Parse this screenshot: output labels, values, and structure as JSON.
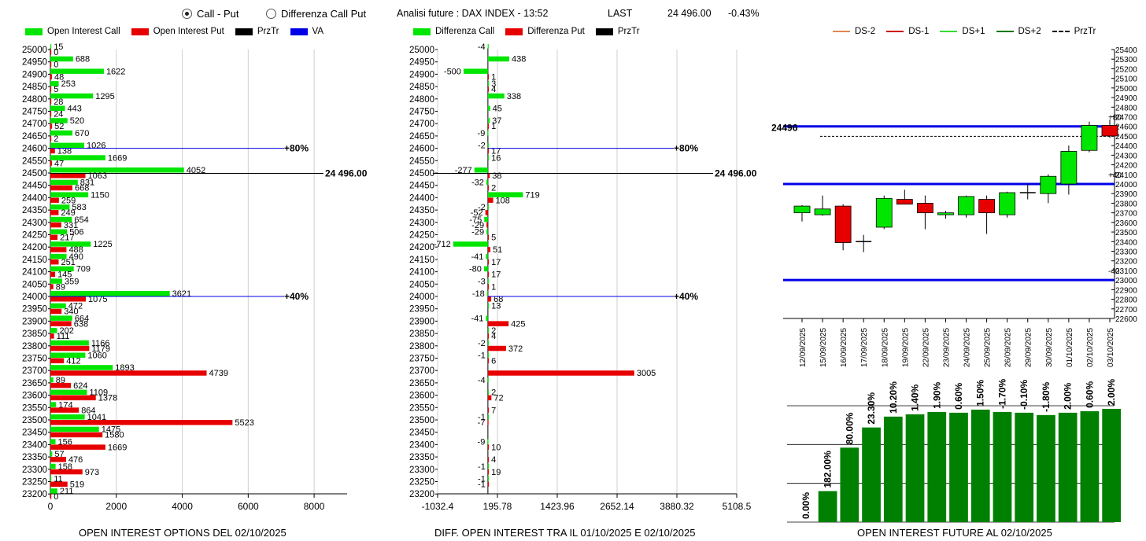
{
  "controls": {
    "radio_call_put": "Call - Put",
    "radio_diff": "Differenza Call Put",
    "selected": "call_put"
  },
  "header": {
    "title": "Analisi future : DAX INDEX - 13:52",
    "last_label": "LAST",
    "last_value": "24 496.00",
    "change": "-0.43%"
  },
  "colors": {
    "green": "#00e600",
    "red": "#e60000",
    "black": "#000000",
    "blue": "#0000e6",
    "dark_green": "#008000"
  },
  "legends": {
    "oi": [
      {
        "label": "Open Interest Call",
        "color": "#00e600",
        "icon": "swatch"
      },
      {
        "label": "Open Interest Put",
        "color": "#e60000",
        "icon": "swatch"
      },
      {
        "label": "PrzTr",
        "color": "#000000",
        "icon": "swatch"
      },
      {
        "label": "VA",
        "color": "#0000e6",
        "icon": "swatch"
      }
    ],
    "diff": [
      {
        "label": "Differenza Call",
        "color": "#00e600",
        "icon": "swatch"
      },
      {
        "label": "Differenza Put",
        "color": "#e60000",
        "icon": "swatch"
      },
      {
        "label": "PrzTr",
        "color": "#000000",
        "icon": "swatch"
      }
    ],
    "candles": [
      {
        "label": "DS-2",
        "color": "#e08850",
        "icon": "line"
      },
      {
        "label": "DS-1",
        "color": "#cc0000",
        "icon": "line"
      },
      {
        "label": "DS+1",
        "color": "#33dd33",
        "icon": "line"
      },
      {
        "label": "DS+2",
        "color": "#007700",
        "icon": "line"
      },
      {
        "label": "PrzTr",
        "color": "#000000",
        "icon": "dash"
      }
    ]
  },
  "footers": {
    "oi": "OPEN INTEREST OPTIONS DEL 02/10/2025",
    "diff": "DIFF. OPEN INTEREST TRA IL 01/10/2025 E 02/10/2025",
    "future": "OPEN INTEREST FUTURE AL 02/10/2025"
  },
  "chart_data": [
    {
      "type": "bar",
      "orientation": "horizontal",
      "title": "OPEN INTEREST OPTIONS DEL 02/10/2025",
      "categories": [
        25000,
        24950,
        24900,
        24850,
        24800,
        24750,
        24700,
        24650,
        24600,
        24550,
        24500,
        24450,
        24400,
        24350,
        24300,
        24250,
        24200,
        24150,
        24100,
        24050,
        24000,
        23950,
        23900,
        23850,
        23800,
        23750,
        23700,
        23650,
        23600,
        23550,
        23500,
        23450,
        23400,
        23350,
        23300,
        23250,
        23200
      ],
      "series": [
        {
          "name": "Open Interest Call",
          "color": "#00e600",
          "values": [
            15,
            688,
            1622,
            253,
            1295,
            443,
            520,
            670,
            1026,
            1669,
            4052,
            831,
            1150,
            583,
            654,
            506,
            1225,
            490,
            709,
            359,
            3621,
            472,
            664,
            202,
            1166,
            1060,
            1893,
            89,
            1109,
            174,
            1041,
            1475,
            156,
            57,
            158,
            11,
            211
          ]
        },
        {
          "name": "Open Interest Put",
          "color": "#e60000",
          "values": [
            0,
            0,
            48,
            5,
            28,
            24,
            52,
            2,
            138,
            47,
            1063,
            668,
            259,
            249,
            331,
            217,
            488,
            251,
            145,
            89,
            1075,
            340,
            638,
            111,
            1179,
            412,
            4739,
            624,
            1378,
            864,
            5523,
            1580,
            1669,
            476,
            973,
            519,
            0
          ]
        }
      ],
      "xlim": [
        0,
        9000
      ],
      "xticks": [
        0,
        2000,
        4000,
        6000,
        8000
      ],
      "annotations": [
        {
          "strike": 24600,
          "label": "+80%",
          "kind": "VA"
        },
        {
          "strike": 24500,
          "label": "24 496.00",
          "kind": "PrzTr"
        },
        {
          "strike": 24000,
          "label": "+40%",
          "kind": "VA"
        }
      ]
    },
    {
      "type": "bar",
      "orientation": "horizontal",
      "title": "DIFF. OPEN INTEREST TRA IL 01/10/2025 E 02/10/2025",
      "categories": [
        25000,
        24950,
        24900,
        24850,
        24800,
        24750,
        24700,
        24650,
        24600,
        24550,
        24500,
        24450,
        24400,
        24350,
        24300,
        24250,
        24200,
        24150,
        24100,
        24050,
        24000,
        23950,
        23900,
        23850,
        23800,
        23750,
        23700,
        23650,
        23600,
        23550,
        23500,
        23450,
        23400,
        23350,
        23300,
        23250,
        23200
      ],
      "series": [
        {
          "name": "Differenza Call",
          "color": "#00e600",
          "values": [
            -4,
            438,
            -500,
            3,
            338,
            45,
            37,
            -9,
            -2,
            16,
            -277,
            -32,
            719,
            -2,
            -75,
            -29,
            -712,
            -41,
            -80,
            -3,
            -18,
            13,
            -41,
            2,
            -2,
            -1,
            null,
            -4,
            2,
            null,
            -1,
            null,
            -9,
            null,
            -1,
            -1,
            null
          ]
        },
        {
          "name": "Differenza Put",
          "color": "#e60000",
          "values": [
            null,
            null,
            1,
            4,
            null,
            null,
            1,
            null,
            17,
            null,
            38,
            2,
            108,
            -52,
            -29,
            5,
            51,
            17,
            17,
            1,
            68,
            null,
            425,
            4,
            372,
            6,
            3005,
            null,
            72,
            7,
            -7,
            null,
            10,
            4,
            19,
            -1,
            null
          ]
        }
      ],
      "xlim": [
        -1032.4,
        5108.5
      ],
      "xticks": [
        -1032.4,
        195.78,
        1423.96,
        2652.14,
        3880.32,
        5108.5
      ],
      "annotations": [
        {
          "strike": 24600,
          "label": "+80%",
          "kind": "VA"
        },
        {
          "strike": 24500,
          "label": "24 496.00",
          "kind": "PrzTr"
        },
        {
          "strike": 24000,
          "label": "+40%",
          "kind": "VA"
        }
      ]
    },
    {
      "type": "candlestick",
      "title": "",
      "x": [
        "12/09/2025",
        "15/09/2025",
        "16/09/2025",
        "17/09/2025",
        "18/09/2025",
        "19/09/2025",
        "22/09/2025",
        "23/09/2025",
        "24/09/2025",
        "25/09/2025",
        "26/09/2025",
        "29/09/2025",
        "30/09/2025",
        "01/10/2025",
        "02/10/2025",
        "03/10/2025"
      ],
      "open": [
        23700,
        23680,
        23770,
        23400,
        23550,
        23840,
        23800,
        23680,
        23680,
        23840,
        23680,
        23900,
        23900,
        24000,
        24350,
        24610
      ],
      "high": [
        23780,
        23880,
        23790,
        23470,
        23880,
        23940,
        23880,
        23720,
        23880,
        23880,
        23920,
        24000,
        24100,
        24400,
        24650,
        24670
      ],
      "low": [
        23610,
        23670,
        23310,
        23290,
        23530,
        23790,
        23530,
        23640,
        23650,
        23480,
        23650,
        23840,
        23800,
        23890,
        24330,
        24480
      ],
      "close": [
        23770,
        23740,
        23390,
        23390,
        23850,
        23790,
        23700,
        23700,
        23870,
        23700,
        23910,
        23910,
        24080,
        24340,
        24610,
        24500
      ],
      "ylim": [
        22600,
        25400
      ],
      "yticks": [
        22600,
        22700,
        22800,
        22900,
        23000,
        23100,
        23200,
        23300,
        23400,
        23500,
        23600,
        23700,
        23800,
        23900,
        24000,
        24100,
        24200,
        24300,
        24400,
        24500,
        24600,
        24700,
        24800,
        24900,
        25000,
        25100,
        25200,
        25300,
        25400
      ],
      "levels": [
        {
          "value": 24600,
          "label": "+80"
        },
        {
          "value": 24000,
          "label": "+40"
        },
        {
          "value": 23000,
          "label": "-40"
        }
      ],
      "price": {
        "value": 24496,
        "label": "24496"
      }
    },
    {
      "type": "bar",
      "title": "OPEN INTEREST FUTURE AL 02/10/2025",
      "labels": [
        "0.00%",
        "182.00%",
        "80.00%",
        "23.30%",
        "10.20%",
        "1.40%",
        "1.90%",
        "0.60%",
        "1.50%",
        "-1.70%",
        "-0.10%",
        "-1.80%",
        "2.00%",
        "0.60%",
        "2.00%"
      ],
      "values": [
        0,
        40,
        96,
        122,
        136,
        139,
        142,
        141,
        145,
        142,
        141,
        138,
        141,
        143,
        146
      ],
      "ylim": [
        0,
        150
      ],
      "color": "#008000"
    }
  ]
}
